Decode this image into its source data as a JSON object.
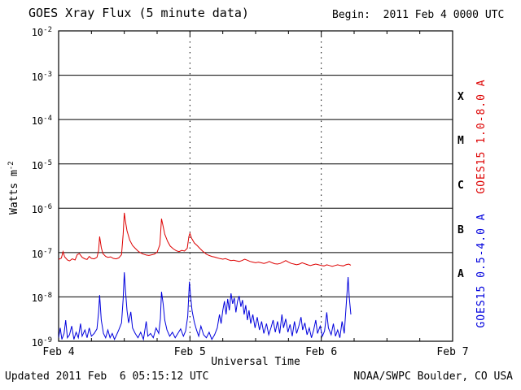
{
  "header": {
    "title": "GOES Xray Flux (5 minute data)",
    "begin": "Begin:  2011 Feb 4 0000 UTC"
  },
  "footer": {
    "updated": "Updated 2011 Feb  6 05:15:12 UTC",
    "source": "NOAA/SWPC Boulder, CO USA"
  },
  "axes": {
    "ylabel_base": "Watts m",
    "ylabel_exp": "-2",
    "xlabel": "Universal Time"
  },
  "chart_data": {
    "type": "line",
    "title": "GOES Xray Flux (5 minute data)",
    "xlabel": "Universal Time",
    "ylabel": "Watts m^-2",
    "x_unit": "hours since 2011 Feb 4 0000 UTC",
    "xlim_hours": [
      0,
      72
    ],
    "ylim_exponents": [
      -9,
      -2
    ],
    "log_y": true,
    "grid": "solid horizontal per decade, dashed vertical per interior day",
    "x_ticks": [
      {
        "hour": 0,
        "label": "Feb 4"
      },
      {
        "hour": 24,
        "label": "Feb 5"
      },
      {
        "hour": 48,
        "label": "Feb 6"
      },
      {
        "hour": 72,
        "label": "Feb 7"
      }
    ],
    "x_grid_hours": [
      24,
      48
    ],
    "x_minor_step_hours": 6,
    "y_tick_exponents": [
      -2,
      -3,
      -4,
      -5,
      -6,
      -7,
      -8,
      -9
    ],
    "flare_classes": [
      {
        "label": "X",
        "exp_mid": -3.5
      },
      {
        "label": "M",
        "exp_mid": -4.5
      },
      {
        "label": "C",
        "exp_mid": -5.5
      },
      {
        "label": "B",
        "exp_mid": -6.5
      },
      {
        "label": "A",
        "exp_mid": -7.5
      }
    ],
    "series": [
      {
        "name": "GOES15 0.5-4.0 A",
        "color": "#0000dd",
        "points": [
          [
            0,
            1.2e-09
          ],
          [
            0.3,
            2e-09
          ],
          [
            0.6,
            1.1e-09
          ],
          [
            1,
            1.5e-09
          ],
          [
            1.3,
            3e-09
          ],
          [
            1.6,
            1.2e-09
          ],
          [
            2,
            1.4e-09
          ],
          [
            2.4,
            2.2e-09
          ],
          [
            2.8,
            1.1e-09
          ],
          [
            3.2,
            1.6e-09
          ],
          [
            3.6,
            1.2e-09
          ],
          [
            4,
            2.5e-09
          ],
          [
            4.3,
            1.3e-09
          ],
          [
            4.8,
            1.8e-09
          ],
          [
            5.2,
            1.2e-09
          ],
          [
            5.6,
            2e-09
          ],
          [
            6,
            1.3e-09
          ],
          [
            6.5,
            1.5e-09
          ],
          [
            7,
            1.9e-09
          ],
          [
            7.3,
            4.5e-09
          ],
          [
            7.5,
            1.1e-08
          ],
          [
            7.8,
            3e-09
          ],
          [
            8.2,
            1.5e-09
          ],
          [
            8.6,
            1.2e-09
          ],
          [
            9,
            1.8e-09
          ],
          [
            9.4,
            1.2e-09
          ],
          [
            9.8,
            1.5e-09
          ],
          [
            10.2,
            1.1e-09
          ],
          [
            10.6,
            1.4e-09
          ],
          [
            11,
            1.8e-09
          ],
          [
            11.5,
            2.6e-09
          ],
          [
            11.8,
            9e-09
          ],
          [
            12,
            3.6e-08
          ],
          [
            12.2,
            1.5e-08
          ],
          [
            12.5,
            5e-09
          ],
          [
            12.8,
            2.6e-09
          ],
          [
            13.2,
            4.6e-09
          ],
          [
            13.5,
            2e-09
          ],
          [
            14,
            1.5e-09
          ],
          [
            14.5,
            1.2e-09
          ],
          [
            15,
            1.6e-09
          ],
          [
            15.5,
            1.1e-09
          ],
          [
            16,
            2.8e-09
          ],
          [
            16.3,
            1.3e-09
          ],
          [
            16.8,
            1.5e-09
          ],
          [
            17.3,
            1.2e-09
          ],
          [
            17.8,
            2e-09
          ],
          [
            18.3,
            1.5e-09
          ],
          [
            18.6,
            3.2e-09
          ],
          [
            18.8,
            1.3e-08
          ],
          [
            19.1,
            7e-09
          ],
          [
            19.4,
            3e-09
          ],
          [
            19.8,
            1.8e-09
          ],
          [
            20.3,
            1.3e-09
          ],
          [
            20.8,
            1.6e-09
          ],
          [
            21.3,
            1.2e-09
          ],
          [
            21.8,
            1.5e-09
          ],
          [
            22.3,
            1.9e-09
          ],
          [
            22.8,
            1.3e-09
          ],
          [
            23.2,
            1.7e-09
          ],
          [
            23.6,
            3.6e-09
          ],
          [
            23.9,
            2.2e-08
          ],
          [
            24.1,
            1.1e-08
          ],
          [
            24.4,
            4.8e-09
          ],
          [
            24.8,
            2.7e-09
          ],
          [
            25.2,
            1.8e-09
          ],
          [
            25.6,
            1.3e-09
          ],
          [
            26,
            2.2e-09
          ],
          [
            26.5,
            1.4e-09
          ],
          [
            27,
            1.2e-09
          ],
          [
            27.5,
            1.6e-09
          ],
          [
            28,
            1.1e-09
          ],
          [
            28.5,
            1.4e-09
          ],
          [
            29,
            2e-09
          ],
          [
            29.4,
            4e-09
          ],
          [
            29.7,
            2.5e-09
          ],
          [
            30,
            5e-09
          ],
          [
            30.3,
            8e-09
          ],
          [
            30.6,
            4e-09
          ],
          [
            30.9,
            9e-09
          ],
          [
            31.2,
            5e-09
          ],
          [
            31.5,
            1.2e-08
          ],
          [
            31.8,
            7e-09
          ],
          [
            32.1,
            9.5e-09
          ],
          [
            32.4,
            4.5e-09
          ],
          [
            32.7,
            8e-09
          ],
          [
            33,
            1.05e-08
          ],
          [
            33.3,
            6e-09
          ],
          [
            33.6,
            8.5e-09
          ],
          [
            33.9,
            4e-09
          ],
          [
            34.2,
            6.5e-09
          ],
          [
            34.5,
            3e-09
          ],
          [
            34.8,
            5e-09
          ],
          [
            35.1,
            2.5e-09
          ],
          [
            35.5,
            4e-09
          ],
          [
            35.9,
            2e-09
          ],
          [
            36.3,
            3.5e-09
          ],
          [
            36.7,
            1.8e-09
          ],
          [
            37.1,
            2.8e-09
          ],
          [
            37.5,
            1.5e-09
          ],
          [
            38,
            2.5e-09
          ],
          [
            38.4,
            1.4e-09
          ],
          [
            38.8,
            2e-09
          ],
          [
            39.2,
            3e-09
          ],
          [
            39.6,
            1.6e-09
          ],
          [
            40,
            2.8e-09
          ],
          [
            40.4,
            1.5e-09
          ],
          [
            40.8,
            4e-09
          ],
          [
            41.1,
            2e-09
          ],
          [
            41.5,
            3.2e-09
          ],
          [
            41.9,
            1.6e-09
          ],
          [
            42.3,
            2.4e-09
          ],
          [
            42.7,
            1.3e-09
          ],
          [
            43.1,
            2.8e-09
          ],
          [
            43.5,
            1.5e-09
          ],
          [
            43.9,
            2.2e-09
          ],
          [
            44.3,
            3.5e-09
          ],
          [
            44.6,
            1.8e-09
          ],
          [
            45,
            2.6e-09
          ],
          [
            45.4,
            1.4e-09
          ],
          [
            45.8,
            2e-09
          ],
          [
            46.2,
            1.2e-09
          ],
          [
            46.6,
            1.8e-09
          ],
          [
            47,
            3e-09
          ],
          [
            47.3,
            1.5e-09
          ],
          [
            47.8,
            2.2e-09
          ],
          [
            48.2,
            1.3e-09
          ],
          [
            48.6,
            1.7e-09
          ],
          [
            49,
            4.5e-09
          ],
          [
            49.3,
            2e-09
          ],
          [
            49.8,
            1.4e-09
          ],
          [
            50.2,
            2.5e-09
          ],
          [
            50.6,
            1.3e-09
          ],
          [
            51,
            1.8e-09
          ],
          [
            51.4,
            1.2e-09
          ],
          [
            51.8,
            2.8e-09
          ],
          [
            52.2,
            1.5e-09
          ],
          [
            52.6,
            8e-09
          ],
          [
            52.9,
            2.8e-08
          ],
          [
            53.1,
            1e-08
          ],
          [
            53.4,
            4e-09
          ]
        ]
      },
      {
        "name": "GOES15 1.0-8.0 A",
        "color": "#dd0000",
        "points": [
          [
            0,
            7e-08
          ],
          [
            0.5,
            7.5e-08
          ],
          [
            0.8,
            1.05e-07
          ],
          [
            1.1,
            8e-08
          ],
          [
            1.6,
            6.8e-08
          ],
          [
            2,
            6.5e-08
          ],
          [
            2.5,
            7.2e-08
          ],
          [
            3,
            6.8e-08
          ],
          [
            3.4,
            9e-08
          ],
          [
            3.8,
            9.5e-08
          ],
          [
            4.3,
            7.8e-08
          ],
          [
            4.8,
            7.2e-08
          ],
          [
            5.2,
            7e-08
          ],
          [
            5.6,
            8.2e-08
          ],
          [
            6,
            7.4e-08
          ],
          [
            6.5,
            7.2e-08
          ],
          [
            7,
            7.8e-08
          ],
          [
            7.3,
            1.1e-07
          ],
          [
            7.5,
            2.3e-07
          ],
          [
            7.8,
            1.3e-07
          ],
          [
            8.1,
            9.5e-08
          ],
          [
            8.6,
            8.2e-08
          ],
          [
            9,
            7.8e-08
          ],
          [
            9.5,
            8e-08
          ],
          [
            10,
            7.4e-08
          ],
          [
            10.5,
            7.2e-08
          ],
          [
            11,
            7.6e-08
          ],
          [
            11.5,
            9e-08
          ],
          [
            11.8,
            2.6e-07
          ],
          [
            12,
            7.9e-07
          ],
          [
            12.2,
            5.2e-07
          ],
          [
            12.5,
            3.1e-07
          ],
          [
            13,
            1.9e-07
          ],
          [
            13.5,
            1.45e-07
          ],
          [
            14,
            1.25e-07
          ],
          [
            14.5,
            1.08e-07
          ],
          [
            15,
            9.8e-08
          ],
          [
            15.5,
            9.2e-08
          ],
          [
            16,
            8.8e-08
          ],
          [
            16.5,
            8.6e-08
          ],
          [
            17,
            8.9e-08
          ],
          [
            17.5,
            9.2e-08
          ],
          [
            18,
            1.02e-07
          ],
          [
            18.5,
            1.5e-07
          ],
          [
            18.8,
            5.8e-07
          ],
          [
            19.1,
            3.9e-07
          ],
          [
            19.4,
            2.6e-07
          ],
          [
            19.9,
            1.8e-07
          ],
          [
            20.4,
            1.4e-07
          ],
          [
            21,
            1.2e-07
          ],
          [
            21.5,
            1.1e-07
          ],
          [
            22,
            1.05e-07
          ],
          [
            22.5,
            1.12e-07
          ],
          [
            23,
            1.08e-07
          ],
          [
            23.5,
            1.25e-07
          ],
          [
            23.8,
            2.3e-07
          ],
          [
            24,
            2.7e-07
          ],
          [
            24.3,
            2.1e-07
          ],
          [
            24.8,
            1.65e-07
          ],
          [
            25.3,
            1.45e-07
          ],
          [
            25.8,
            1.25e-07
          ],
          [
            26.3,
            1.08e-07
          ],
          [
            27,
            9.2e-08
          ],
          [
            27.5,
            8.6e-08
          ],
          [
            28,
            8.2e-08
          ],
          [
            28.5,
            7.9e-08
          ],
          [
            29,
            7.6e-08
          ],
          [
            29.5,
            7.3e-08
          ],
          [
            30,
            7.1e-08
          ],
          [
            30.5,
            7.3e-08
          ],
          [
            31,
            6.9e-08
          ],
          [
            31.5,
            6.6e-08
          ],
          [
            32,
            6.7e-08
          ],
          [
            32.5,
            6.5e-08
          ],
          [
            33,
            6.3e-08
          ],
          [
            33.5,
            6.6e-08
          ],
          [
            34,
            7.1e-08
          ],
          [
            34.5,
            6.7e-08
          ],
          [
            35,
            6.3e-08
          ],
          [
            35.5,
            6.1e-08
          ],
          [
            36,
            5.9e-08
          ],
          [
            36.5,
            6.1e-08
          ],
          [
            37,
            5.9e-08
          ],
          [
            37.5,
            5.7e-08
          ],
          [
            38,
            5.9e-08
          ],
          [
            38.5,
            6.3e-08
          ],
          [
            39,
            5.9e-08
          ],
          [
            39.5,
            5.6e-08
          ],
          [
            40,
            5.5e-08
          ],
          [
            40.5,
            5.7e-08
          ],
          [
            41,
            6.1e-08
          ],
          [
            41.5,
            6.6e-08
          ],
          [
            42,
            6.1e-08
          ],
          [
            42.5,
            5.7e-08
          ],
          [
            43,
            5.5e-08
          ],
          [
            43.5,
            5.3e-08
          ],
          [
            44,
            5.5e-08
          ],
          [
            44.5,
            5.9e-08
          ],
          [
            45,
            5.6e-08
          ],
          [
            45.5,
            5.3e-08
          ],
          [
            46,
            5.1e-08
          ],
          [
            46.5,
            5.3e-08
          ],
          [
            47,
            5.5e-08
          ],
          [
            47.5,
            5.3e-08
          ],
          [
            48,
            5.1e-08
          ],
          [
            48.5,
            5e-08
          ],
          [
            49,
            5.3e-08
          ],
          [
            49.5,
            5.1e-08
          ],
          [
            50,
            4.9e-08
          ],
          [
            50.5,
            5.1e-08
          ],
          [
            51,
            5.3e-08
          ],
          [
            51.5,
            5.1e-08
          ],
          [
            52,
            5e-08
          ],
          [
            52.5,
            5.3e-08
          ],
          [
            53,
            5.5e-08
          ],
          [
            53.4,
            5.2e-08
          ]
        ]
      }
    ]
  }
}
